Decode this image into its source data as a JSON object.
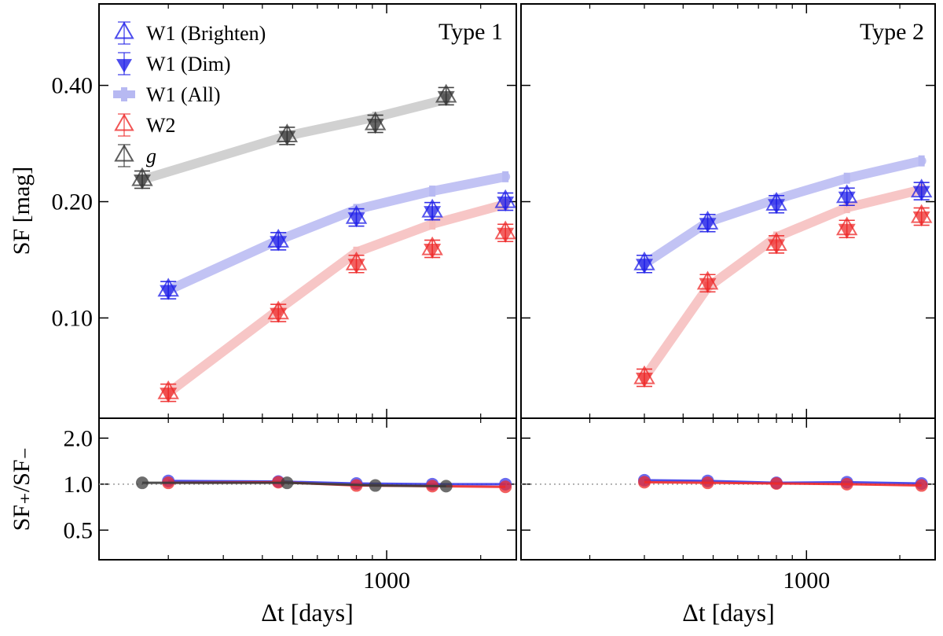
{
  "figure": {
    "y_axis_label_top": "SF [mag]",
    "y_axis_label_bottom": "SF₊/SF₋",
    "x_axis_label": "Δt [days]",
    "legend": [
      {
        "label": "W1 (Brighten)",
        "marker": "open-triangle-up",
        "color": "#1f1fe8"
      },
      {
        "label": "W1 (Dim)",
        "marker": "filled-triangle-down",
        "color": "#1f1fe8"
      },
      {
        "label": "W1 (All)",
        "marker": "thick-line",
        "color": "#b7b9f2"
      },
      {
        "label": "W2",
        "marker": "open-triangle-up",
        "color": "#ee2a2a"
      },
      {
        "label": "g",
        "marker": "open-triangle-up",
        "color": "#333333"
      }
    ]
  },
  "chart_data": [
    {
      "type": "scatter",
      "panel": "top-left",
      "title": "Type 1",
      "xscale": "log",
      "xlim": [
        120,
        2600
      ],
      "yscale": "log",
      "ylim": [
        0.055,
        0.65
      ],
      "yticks": [
        0.1,
        0.2,
        0.4
      ],
      "yticklabels": [
        "0.10",
        "0.20",
        "0.40"
      ],
      "series": [
        {
          "name": "W1 (All)",
          "style": "band",
          "color": "#b7b9f2",
          "x": [
            200,
            450,
            800,
            1400,
            2400
          ],
          "y": [
            0.118,
            0.159,
            0.191,
            0.213,
            0.232
          ]
        },
        {
          "name": "W2 (All)",
          "style": "band",
          "color": "#f6bcbc",
          "x": [
            200,
            450,
            800,
            1400,
            2400
          ],
          "y": [
            0.064,
            0.105,
            0.148,
            0.175,
            0.197
          ]
        },
        {
          "name": "g (All)",
          "style": "band",
          "color": "#c9c9c9",
          "x": [
            165,
            480,
            920,
            1550
          ],
          "y": [
            0.228,
            0.296,
            0.331,
            0.368
          ]
        },
        {
          "name": "W1 (Brighten)",
          "style": "open-up",
          "color": "#1f1fe8",
          "x": [
            200,
            450,
            800,
            1400,
            2400
          ],
          "y": [
            0.118,
            0.158,
            0.182,
            0.189,
            0.2
          ]
        },
        {
          "name": "W1 (Dim)",
          "style": "filled-down",
          "color": "#1f1fe8",
          "x": [
            200,
            450,
            800,
            1400,
            2400
          ],
          "y": [
            0.118,
            0.158,
            0.182,
            0.189,
            0.2
          ]
        },
        {
          "name": "W2 (Brighten)",
          "style": "open-up",
          "color": "#ee2a2a",
          "x": [
            200,
            450,
            800,
            1400,
            2400
          ],
          "y": [
            0.064,
            0.103,
            0.138,
            0.151,
            0.166
          ]
        },
        {
          "name": "W2 (Dim)",
          "style": "filled-down",
          "color": "#ee2a2a",
          "x": [
            200,
            450,
            800,
            1400,
            2400
          ],
          "y": [
            0.064,
            0.103,
            0.138,
            0.151,
            0.166
          ]
        },
        {
          "name": "g (Brighten)",
          "style": "open-up",
          "color": "#333333",
          "x": [
            165,
            480,
            920,
            1550
          ],
          "y": [
            0.228,
            0.296,
            0.318,
            0.375
          ]
        },
        {
          "name": "g (Dim)",
          "style": "filled-down",
          "color": "#333333",
          "x": [
            165,
            480,
            920,
            1550
          ],
          "y": [
            0.228,
            0.296,
            0.318,
            0.375
          ]
        }
      ]
    },
    {
      "type": "scatter",
      "panel": "top-right",
      "title": "Type 2",
      "xscale": "log",
      "xlim": [
        120,
        2600
      ],
      "yscale": "log",
      "ylim": [
        0.055,
        0.65
      ],
      "yticks": [
        0.1,
        0.2,
        0.4
      ],
      "series": [
        {
          "name": "W1 (All)",
          "style": "band",
          "color": "#b7b9f2",
          "x": [
            300,
            480,
            800,
            1350,
            2350
          ],
          "y": [
            0.138,
            0.177,
            0.203,
            0.23,
            0.255
          ]
        },
        {
          "name": "W2 (All)",
          "style": "band",
          "color": "#f6bcbc",
          "x": [
            300,
            480,
            800,
            1350,
            2350
          ],
          "y": [
            0.07,
            0.12,
            0.162,
            0.193,
            0.215
          ]
        },
        {
          "name": "W1 (Brighten)",
          "style": "open-up",
          "color": "#1f1fe8",
          "x": [
            300,
            480,
            800,
            1350,
            2350
          ],
          "y": [
            0.138,
            0.176,
            0.197,
            0.206,
            0.213
          ]
        },
        {
          "name": "W1 (Dim)",
          "style": "filled-down",
          "color": "#1f1fe8",
          "x": [
            300,
            480,
            800,
            1350,
            2350
          ],
          "y": [
            0.138,
            0.176,
            0.197,
            0.206,
            0.213
          ]
        },
        {
          "name": "W2 (Brighten)",
          "style": "open-up",
          "color": "#ee2a2a",
          "x": [
            300,
            480,
            800,
            1350,
            2350
          ],
          "y": [
            0.07,
            0.123,
            0.155,
            0.17,
            0.183
          ]
        },
        {
          "name": "W2 (Dim)",
          "style": "filled-down",
          "color": "#ee2a2a",
          "x": [
            300,
            480,
            800,
            1350,
            2350
          ],
          "y": [
            0.07,
            0.123,
            0.155,
            0.17,
            0.183
          ]
        }
      ]
    },
    {
      "type": "line",
      "panel": "bottom-left",
      "xscale": "log",
      "xlim": [
        120,
        2600
      ],
      "yscale": "log",
      "ylim": [
        0.32,
        2.7
      ],
      "yticks": [
        0.5,
        1.0,
        2.0
      ],
      "yticklabels": [
        "0.5",
        "1.0",
        "2.0"
      ],
      "reference_line": 1.0,
      "xticks": [
        1000
      ],
      "xticklabels": [
        "1000"
      ],
      "series": [
        {
          "name": "W1",
          "color": "#3a3ae8",
          "x": [
            200,
            450,
            800,
            1400,
            2400
          ],
          "y": [
            1.05,
            1.04,
            1.01,
            1.0,
            1.0
          ]
        },
        {
          "name": "W2",
          "color": "#ee2a2a",
          "x": [
            200,
            450,
            800,
            1400,
            2400
          ],
          "y": [
            1.02,
            1.03,
            0.98,
            0.97,
            0.96
          ]
        },
        {
          "name": "g",
          "color": "#3c3c3c",
          "x": [
            165,
            480,
            920,
            1550
          ],
          "y": [
            1.02,
            1.02,
            0.98,
            0.97
          ]
        }
      ]
    },
    {
      "type": "line",
      "panel": "bottom-right",
      "xscale": "log",
      "xlim": [
        120,
        2600
      ],
      "yscale": "log",
      "ylim": [
        0.32,
        2.7
      ],
      "yticks": [
        0.5,
        1.0,
        2.0
      ],
      "reference_line": 1.0,
      "xticks": [
        1000
      ],
      "xticklabels": [
        "1000"
      ],
      "series": [
        {
          "name": "W1",
          "color": "#3a3ae8",
          "x": [
            300,
            480,
            800,
            1350,
            2350
          ],
          "y": [
            1.06,
            1.05,
            1.02,
            1.03,
            1.01
          ]
        },
        {
          "name": "W2",
          "color": "#ee2a2a",
          "x": [
            300,
            480,
            800,
            1350,
            2350
          ],
          "y": [
            1.03,
            1.02,
            1.01,
            1.0,
            0.98
          ]
        }
      ]
    }
  ]
}
